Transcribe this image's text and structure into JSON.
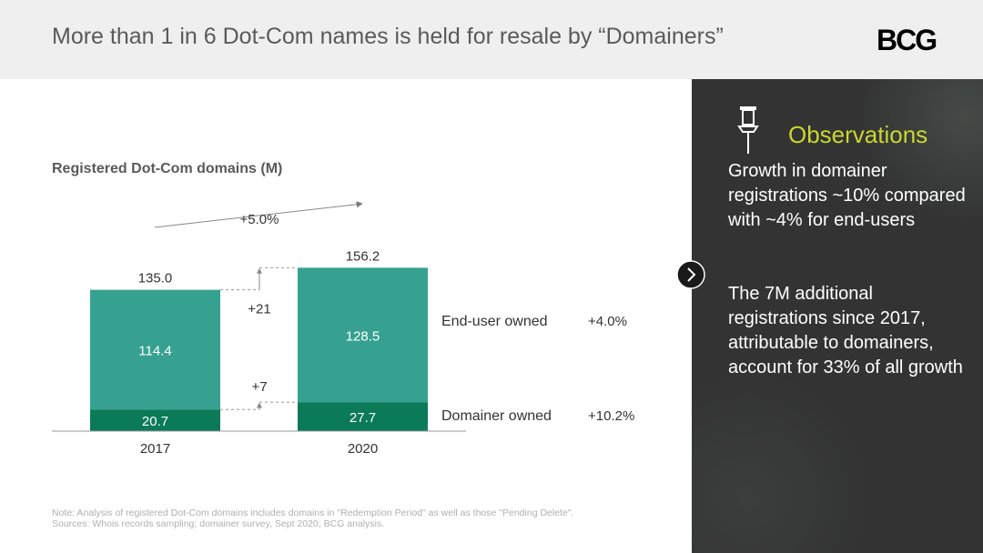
{
  "header": {
    "title": "More than 1 in 6 Dot-Com names is held for resale by “Domainers”",
    "logo": "BCG"
  },
  "chart_data": {
    "type": "bar",
    "stacked": true,
    "title": "Registered Dot-Com domains (M)",
    "categories": [
      "2017",
      "2020"
    ],
    "series": [
      {
        "name": "Domainer owned",
        "values": [
          20.7,
          27.7
        ],
        "growth": "+10.2%",
        "color": "#0b7a56"
      },
      {
        "name": "End-user owned",
        "values": [
          114.4,
          128.5
        ],
        "growth": "+4.0%",
        "color": "#36a190"
      }
    ],
    "totals": [
      "135.0",
      "156.2"
    ],
    "value_labels": {
      "domainer": [
        "20.7",
        "27.7"
      ],
      "enduser": [
        "114.4",
        "128.5"
      ]
    },
    "total_growth": "+5.0%",
    "diff_enduser": "+21",
    "diff_domainer": "+7",
    "ylim": [
      0,
      160
    ]
  },
  "observations": {
    "title": "Observations",
    "point1": "Growth in domainer registrations ~10% compared with ~4% for end-users",
    "point2": "The 7M additional registrations since 2017, attributable to domainers, account for 33% of all growth"
  },
  "footnote": {
    "note": "Note: Analysis of registered Dot-Com domains includes domains in \"Redemption Period\" as well as those \"Pending Delete\".",
    "sources": "Sources: Whois records sampling; domainer survey, Sept 2020; BCG analysis."
  }
}
